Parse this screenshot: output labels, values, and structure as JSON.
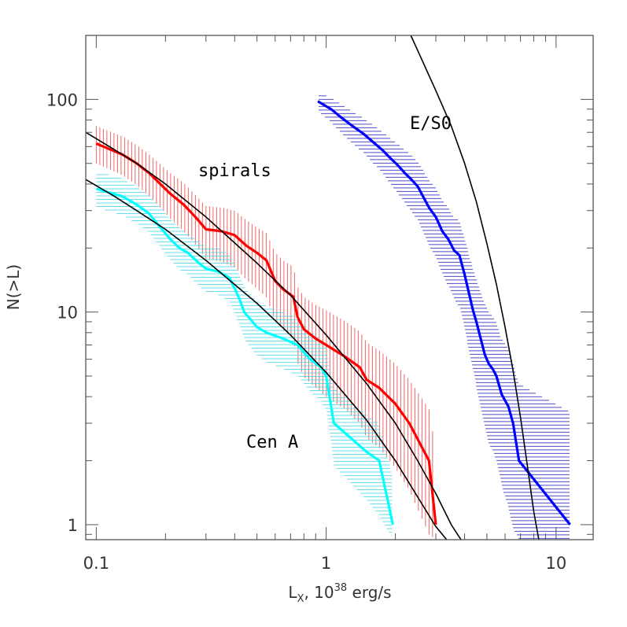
{
  "chart_data": {
    "type": "line",
    "title": "",
    "xlabel": "L",
    "xlabel_sub": "X",
    "xlabel_rest": ", 10",
    "xlabel_sup": "38",
    "xlabel_unit": " erg/s",
    "ylabel": "N(>L)",
    "x_scale": "log",
    "y_scale": "log",
    "xlim": [
      0.09,
      14.5
    ],
    "ylim": [
      0.85,
      200
    ],
    "x_ticks": [
      {
        "v": 0.1,
        "label": "0.1"
      },
      {
        "v": 1,
        "label": "1"
      },
      {
        "v": 10,
        "label": "10"
      }
    ],
    "y_ticks": [
      {
        "v": 1,
        "label": "1"
      },
      {
        "v": 10,
        "label": "10"
      },
      {
        "v": 100,
        "label": "100"
      }
    ],
    "grid": false,
    "legend": "none",
    "annotations": [
      {
        "text": "E/S0",
        "color": "#4a4aff"
      },
      {
        "text": "spirals",
        "color": "#ff2020"
      },
      {
        "text": "Cen A",
        "color": "#00e5ee"
      }
    ],
    "series": [
      {
        "name": "E/S0",
        "color": "#0000ff",
        "hatch_color": "#2020c0",
        "hatch": "horizontal",
        "x": [
          0.92,
          1.05,
          1.15,
          1.3,
          1.45,
          1.6,
          1.75,
          1.9,
          2.05,
          2.2,
          2.35,
          2.5,
          2.6,
          2.8,
          3.0,
          3.2,
          3.4,
          3.6,
          3.8,
          4.0,
          4.2,
          4.35,
          4.5,
          4.7,
          4.9,
          5.1,
          5.3,
          5.5,
          5.8,
          6.2,
          6.5,
          6.9,
          11.5
        ],
        "y": [
          98,
          90,
          83,
          75,
          69,
          63,
          58,
          53,
          49,
          45,
          42,
          39,
          36,
          31,
          28,
          24,
          22,
          19.5,
          18.5,
          15,
          12,
          10.2,
          9,
          7.5,
          6.3,
          5.7,
          5.4,
          5.0,
          4.1,
          3.6,
          3.0,
          2.0,
          1.0
        ],
        "band_lo": [
          88,
          78,
          70,
          62,
          56,
          50,
          45,
          40,
          36,
          32.5,
          29.5,
          27,
          24.5,
          20.5,
          18,
          15,
          13.2,
          11.5,
          10.5,
          8.2,
          6.3,
          5.2,
          4.4,
          3.5,
          2.8,
          2.4,
          2.2,
          2.0,
          1.5,
          1.2,
          0.95,
          0.85,
          0.85
        ],
        "band_hi": [
          108,
          102,
          96,
          88,
          82,
          76,
          71,
          66,
          62,
          58,
          55,
          51,
          48,
          42,
          38.5,
          34,
          31,
          28,
          27,
          22.5,
          18.5,
          16,
          14.5,
          12.5,
          11,
          10,
          9.6,
          9,
          7.5,
          6.8,
          5.8,
          4.6,
          3.4
        ]
      },
      {
        "name": "spirals",
        "color": "#ff0000",
        "hatch_color": "#ee3030",
        "hatch": "vertical",
        "x": [
          0.1,
          0.13,
          0.15,
          0.17,
          0.19,
          0.21,
          0.24,
          0.27,
          0.3,
          0.35,
          0.4,
          0.45,
          0.5,
          0.55,
          0.6,
          0.65,
          0.72,
          0.75,
          0.8,
          0.9,
          1.0,
          1.2,
          1.4,
          1.5,
          1.7,
          2.0,
          2.3,
          2.8,
          3.0
        ],
        "y": [
          62,
          55,
          50,
          45,
          40,
          36,
          32,
          28,
          24.5,
          24,
          23,
          20.5,
          19,
          17.5,
          14,
          12.8,
          11.8,
          9.5,
          8.3,
          7.5,
          7.0,
          6.2,
          5.5,
          4.8,
          4.4,
          3.7,
          3.0,
          2.0,
          1.0
        ],
        "band_lo": [
          50,
          44,
          39.5,
          35,
          31,
          27.5,
          24,
          20.8,
          17.8,
          17.3,
          16.2,
          14.2,
          12.9,
          11.7,
          9.1,
          8.2,
          7.4,
          5.8,
          4.95,
          4.4,
          4.0,
          3.5,
          3.0,
          2.55,
          2.3,
          1.85,
          1.45,
          0.9,
          0.85
        ],
        "band_hi": [
          75,
          67,
          61,
          55,
          49.5,
          45,
          40.5,
          35.5,
          31.5,
          31,
          30,
          27,
          25,
          23.5,
          19,
          17.5,
          16.3,
          13.2,
          11.8,
          10.8,
          10.2,
          9.1,
          8.1,
          7.2,
          6.6,
          5.7,
          4.8,
          3.5,
          2.2
        ]
      },
      {
        "name": "Cen A",
        "color": "#00ffff",
        "hatch_color": "#40d8e8",
        "hatch": "horizontal",
        "x": [
          0.1,
          0.13,
          0.15,
          0.17,
          0.19,
          0.21,
          0.23,
          0.25,
          0.28,
          0.3,
          0.34,
          0.38,
          0.42,
          0.44,
          0.5,
          0.55,
          0.65,
          0.75,
          0.85,
          0.95,
          1.0,
          1.08,
          1.5,
          1.7,
          1.95
        ],
        "y": [
          38,
          35,
          32,
          29,
          25,
          22,
          20,
          19,
          17,
          16,
          15.5,
          14.5,
          11.5,
          10,
          8.5,
          8,
          7.5,
          7,
          6,
          5.5,
          5,
          3,
          2.2,
          2,
          1
        ],
        "band_lo": [
          31,
          28.5,
          26,
          23.5,
          20,
          17.5,
          15.8,
          15,
          13.2,
          12.4,
          12,
          11.2,
          8.6,
          7.4,
          6.2,
          5.8,
          5.4,
          5.0,
          4.2,
          3.8,
          3.4,
          1.9,
          1.3,
          1.1,
          0.85
        ],
        "band_hi": [
          46,
          42.5,
          39,
          35.5,
          31,
          27.5,
          25,
          23.5,
          21.5,
          20.5,
          20,
          18.7,
          15,
          13.2,
          11.3,
          10.7,
          10,
          9.4,
          8.2,
          7.5,
          6.9,
          4.4,
          3.3,
          3.0,
          1.7
        ]
      },
      {
        "name": "",
        "color": "#000000",
        "x": [
          2.2,
          2.5,
          3.0,
          3.5,
          4.0,
          4.5,
          5.0,
          5.5,
          6.0,
          6.5,
          7.0,
          7.5,
          8.0,
          8.5
        ],
        "y": [
          230,
          170,
          110,
          75,
          50,
          33,
          21,
          13.5,
          8.5,
          5.3,
          3.2,
          1.9,
          1.15,
          0.8
        ]
      },
      {
        "name": "",
        "color": "#000000",
        "x": [
          0.09,
          0.12,
          0.15,
          0.2,
          0.3,
          0.5,
          0.7,
          1.0,
          1.5,
          2.0,
          2.5,
          3.0,
          3.5,
          4.0
        ],
        "y": [
          70,
          58,
          50,
          40,
          28,
          17,
          12,
          7.8,
          4.6,
          3.0,
          2.0,
          1.4,
          1.0,
          0.8
        ]
      },
      {
        "name": "",
        "color": "#000000",
        "x": [
          0.09,
          0.12,
          0.15,
          0.2,
          0.3,
          0.5,
          0.7,
          1.0,
          1.5,
          2.0,
          2.5,
          3.0,
          3.5
        ],
        "y": [
          42,
          35,
          30,
          24.5,
          17.5,
          11,
          7.8,
          5.2,
          3.1,
          2.0,
          1.35,
          0.98,
          0.8
        ]
      }
    ]
  }
}
